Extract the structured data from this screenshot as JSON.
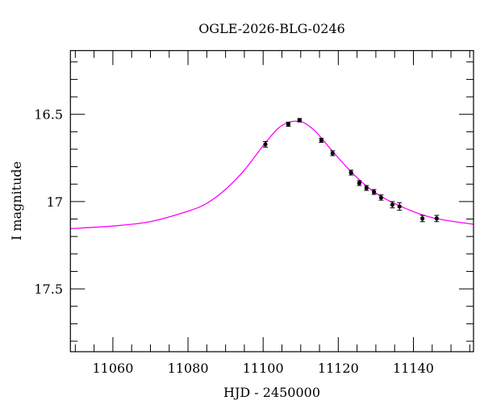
{
  "chart_data": {
    "type": "scatter",
    "title": "OGLE-2026-BLG-0246",
    "xlabel": "HJD - 2450000",
    "ylabel": "I magnitude",
    "xlim": [
      11048.7,
      11156
    ],
    "ylim": [
      16.135,
      17.86
    ],
    "y_inverted": true,
    "x_major_ticks": [
      11060,
      11080,
      11100,
      11120,
      11140
    ],
    "x_minor_step": 5,
    "y_major_ticks": [
      16.5,
      17,
      17.5
    ],
    "y_tick_labels": [
      "16.5",
      "17",
      "17.5"
    ],
    "y_minor_step": 0.1,
    "grid": false,
    "colors": {
      "points": "#000000",
      "model": "#ff00ff"
    },
    "points": {
      "x": [
        11100.6,
        11106.7,
        11109.7,
        11115.5,
        11118.5,
        11123.4,
        11125.6,
        11127.5,
        11129.5,
        11131.4,
        11134.4,
        11136.3,
        11142.4,
        11146.2
      ],
      "y": [
        16.672,
        16.557,
        16.534,
        16.649,
        16.723,
        16.834,
        16.894,
        16.922,
        16.945,
        16.977,
        17.018,
        17.028,
        17.097,
        17.097
      ],
      "yerr": [
        0.016,
        0.012,
        0.01,
        0.012,
        0.014,
        0.014,
        0.014,
        0.014,
        0.014,
        0.015,
        0.018,
        0.022,
        0.018,
        0.018
      ]
    },
    "model": {
      "x": [
        11048.7,
        11060,
        11070,
        11080,
        11085,
        11090,
        11095,
        11100,
        11104,
        11107,
        11109,
        11111,
        11114,
        11118,
        11123,
        11128,
        11133,
        11138,
        11143,
        11148,
        11156
      ],
      "y": [
        17.155,
        17.14,
        17.115,
        17.055,
        17.01,
        16.93,
        16.82,
        16.68,
        16.58,
        16.545,
        16.54,
        16.55,
        16.6,
        16.7,
        16.82,
        16.92,
        16.99,
        17.04,
        17.08,
        17.105,
        17.13
      ]
    }
  }
}
